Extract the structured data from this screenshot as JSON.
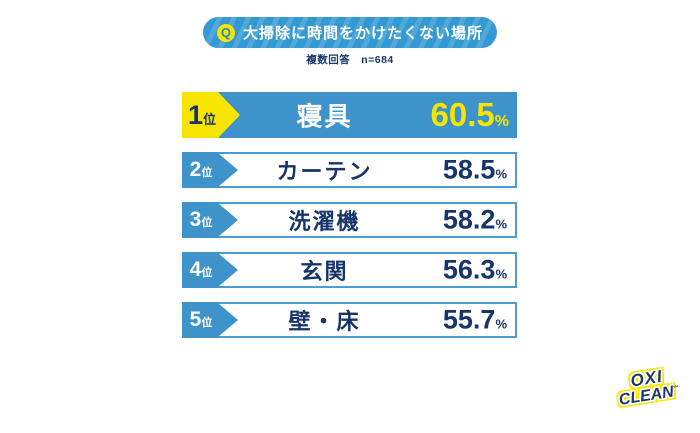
{
  "header": {
    "q_label": "Q",
    "title": "大掃除に時間をかけたくない場所",
    "subtitle": "複数回答　n=684"
  },
  "chart_data": {
    "type": "bar",
    "title": "大掃除に時間をかけたくない場所",
    "note": "複数回答",
    "sample_size": "n=684",
    "categories": [
      "寝具",
      "カーテン",
      "洗濯機",
      "玄関",
      "壁・床"
    ],
    "values": [
      60.5,
      58.5,
      58.2,
      56.3,
      55.7
    ],
    "unit": "%",
    "ranks": [
      "1位",
      "2位",
      "3位",
      "4位",
      "5位"
    ],
    "highlight_rank": 1,
    "legend": "none",
    "layout": "horizontal ranking list, equal-length bars, rank 1 filled blue with yellow value, ranks 2-5 white with blue outline"
  },
  "rows": [
    {
      "rank": "1",
      "rank_suffix": "位",
      "label": "寝具",
      "value": "60.5",
      "unit": "%"
    },
    {
      "rank": "2",
      "rank_suffix": "位",
      "label": "カーテン",
      "value": "58.5",
      "unit": "%"
    },
    {
      "rank": "3",
      "rank_suffix": "位",
      "label": "洗濯機",
      "value": "58.2",
      "unit": "%"
    },
    {
      "rank": "4",
      "rank_suffix": "位",
      "label": "玄関",
      "value": "56.3",
      "unit": "%"
    },
    {
      "rank": "5",
      "rank_suffix": "位",
      "label": "壁・床",
      "value": "55.7",
      "unit": "%"
    }
  ],
  "logo": {
    "line1": "OXI",
    "line2": "CLEAN",
    "trademark": "™"
  },
  "colors": {
    "blue": "#3f93cb",
    "pill_blue": "#3399d2",
    "yellow": "#f7e400",
    "navy": "#17356b",
    "background": "#ffffff"
  }
}
